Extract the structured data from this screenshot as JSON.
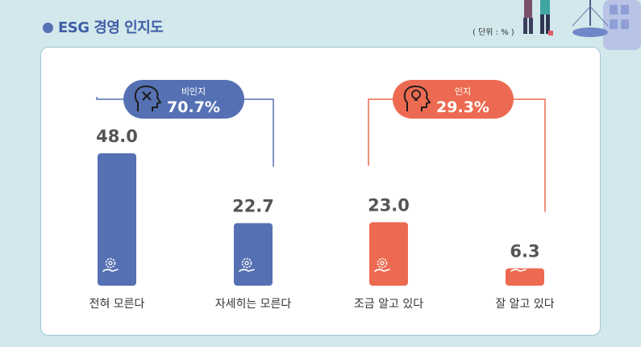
{
  "header": {
    "title": "ESG 경영 인지도",
    "unit": "( 단위 : % )"
  },
  "colors": {
    "not_aware": "#5571b3",
    "aware": "#ec6a51",
    "background": "#d3e8ec"
  },
  "groups": [
    {
      "label": "비인지",
      "value": "70.7%",
      "color": "#5571b3",
      "icon": "head-x-icon"
    },
    {
      "label": "인지",
      "value": "29.3%",
      "color": "#ec6a51",
      "icon": "head-lightbulb-icon"
    }
  ],
  "chart_data": {
    "type": "bar",
    "categories": [
      "전혀 모른다",
      "자세히는 모른다",
      "조금 알고 있다",
      "잘 알고 있다"
    ],
    "values": [
      48.0,
      22.7,
      23.0,
      6.3
    ],
    "value_labels": [
      "48.0",
      "22.7",
      "23.0",
      "6.3"
    ],
    "bar_colors": [
      "#5571b3",
      "#5571b3",
      "#ec6a51",
      "#ec6a51"
    ],
    "bar_icon": "gear-hand-icon",
    "ylim": [
      0,
      48
    ],
    "grid": false,
    "legend": "none"
  }
}
